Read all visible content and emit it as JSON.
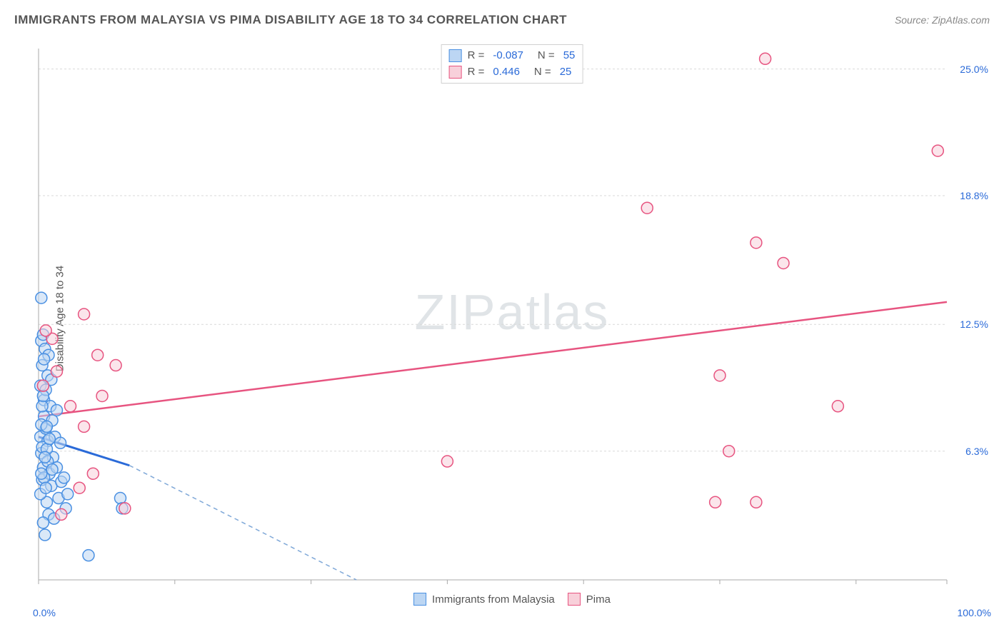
{
  "header": {
    "title": "IMMIGRANTS FROM MALAYSIA VS PIMA DISABILITY AGE 18 TO 34 CORRELATION CHART",
    "source": "Source: ZipAtlas.com"
  },
  "watermark": {
    "zip": "ZIP",
    "atlas": "atlas"
  },
  "ylabel": "Disability Age 18 to 34",
  "chart": {
    "type": "scatter",
    "background_color": "#ffffff",
    "grid_color": "#d9d9d9",
    "axis_color": "#aaaaaa",
    "xlim": [
      0,
      100
    ],
    "ylim": [
      0,
      26
    ],
    "x_ticks": [
      0,
      15,
      30,
      45,
      60,
      75,
      90,
      100
    ],
    "x_axis_labels": [
      {
        "text": "0.0%",
        "x": 0,
        "align": "start"
      },
      {
        "text": "100.0%",
        "x": 100,
        "align": "end"
      }
    ],
    "y_gridlines": [
      {
        "y": 6.3,
        "label": "6.3%"
      },
      {
        "y": 12.5,
        "label": "12.5%"
      },
      {
        "y": 18.8,
        "label": "18.8%"
      },
      {
        "y": 25.0,
        "label": "25.0%"
      }
    ],
    "marker_radius": 8,
    "marker_stroke_width": 1.5,
    "series": [
      {
        "name": "Immigrants from Malaysia",
        "fill": "#bcd6f3",
        "stroke": "#4a90e2",
        "fill_opacity": 0.55,
        "R": "-0.087",
        "N": "55",
        "trend": {
          "solid": {
            "x1": 0,
            "y1": 7.0,
            "x2": 10,
            "y2": 5.6,
            "width": 3,
            "color": "#2a6ad8"
          },
          "dashed": {
            "x1": 10,
            "y1": 5.6,
            "x2": 35,
            "y2": 0,
            "color": "#7fa8d8",
            "dash": "6 5"
          }
        },
        "points": [
          [
            0.2,
            7.0
          ],
          [
            0.3,
            6.2
          ],
          [
            0.5,
            5.5
          ],
          [
            0.4,
            4.9
          ],
          [
            0.6,
            8.0
          ],
          [
            0.8,
            7.4
          ],
          [
            1.0,
            6.8
          ],
          [
            0.3,
            11.7
          ],
          [
            0.4,
            10.5
          ],
          [
            0.2,
            9.5
          ],
          [
            1.2,
            5.2
          ],
          [
            1.4,
            4.6
          ],
          [
            0.9,
            3.8
          ],
          [
            1.1,
            3.2
          ],
          [
            1.6,
            6.0
          ],
          [
            1.8,
            7.0
          ],
          [
            0.5,
            12.0
          ],
          [
            0.7,
            11.3
          ],
          [
            0.3,
            13.8
          ],
          [
            2.0,
            5.5
          ],
          [
            2.2,
            4.0
          ],
          [
            2.5,
            4.8
          ],
          [
            0.6,
            8.8
          ],
          [
            0.8,
            9.3
          ],
          [
            1.0,
            10.0
          ],
          [
            0.4,
            6.5
          ],
          [
            1.3,
            8.5
          ],
          [
            1.5,
            7.8
          ],
          [
            0.2,
            4.2
          ],
          [
            0.9,
            6.4
          ],
          [
            3.0,
            3.5
          ],
          [
            3.2,
            4.2
          ],
          [
            0.5,
            2.8
          ],
          [
            0.7,
            2.2
          ],
          [
            5.5,
            1.2
          ],
          [
            1.1,
            11.0
          ],
          [
            1.4,
            9.8
          ],
          [
            0.3,
            7.6
          ],
          [
            0.6,
            5.0
          ],
          [
            2.0,
            8.3
          ],
          [
            2.4,
            6.7
          ],
          [
            1.7,
            3.0
          ],
          [
            0.8,
            4.5
          ],
          [
            1.0,
            5.8
          ],
          [
            0.4,
            8.5
          ],
          [
            9.0,
            4.0
          ],
          [
            9.2,
            3.5
          ],
          [
            1.2,
            6.9
          ],
          [
            0.5,
            9.0
          ],
          [
            0.9,
            7.5
          ],
          [
            2.8,
            5.0
          ],
          [
            0.7,
            6.0
          ],
          [
            1.5,
            5.4
          ],
          [
            0.3,
            5.2
          ],
          [
            0.6,
            10.8
          ]
        ]
      },
      {
        "name": "Pima",
        "fill": "#f8d0da",
        "stroke": "#e75480",
        "fill_opacity": 0.55,
        "R": "0.446",
        "N": "25",
        "trend": {
          "solid": {
            "x1": 0,
            "y1": 8.0,
            "x2": 100,
            "y2": 13.6,
            "width": 2.5,
            "color": "#e75480"
          }
        },
        "points": [
          [
            0.5,
            9.5
          ],
          [
            1.5,
            11.8
          ],
          [
            2.0,
            10.2
          ],
          [
            3.5,
            8.5
          ],
          [
            5.0,
            13.0
          ],
          [
            6.5,
            11.0
          ],
          [
            7.0,
            9.0
          ],
          [
            8.5,
            10.5
          ],
          [
            5.0,
            7.5
          ],
          [
            2.5,
            3.2
          ],
          [
            4.5,
            4.5
          ],
          [
            6.0,
            5.2
          ],
          [
            9.5,
            3.5
          ],
          [
            45.0,
            5.8
          ],
          [
            67.0,
            18.2
          ],
          [
            75.0,
            10.0
          ],
          [
            76.0,
            6.3
          ],
          [
            74.5,
            3.8
          ],
          [
            80.0,
            25.5
          ],
          [
            79.0,
            16.5
          ],
          [
            79.0,
            3.8
          ],
          [
            82.0,
            15.5
          ],
          [
            88.0,
            8.5
          ],
          [
            99.0,
            21.0
          ],
          [
            0.8,
            12.2
          ]
        ]
      }
    ]
  },
  "legend_top_labels": {
    "R": "R =",
    "N": "N ="
  },
  "colors": {
    "value_color": "#2a6ad8",
    "label_color": "#555555"
  }
}
